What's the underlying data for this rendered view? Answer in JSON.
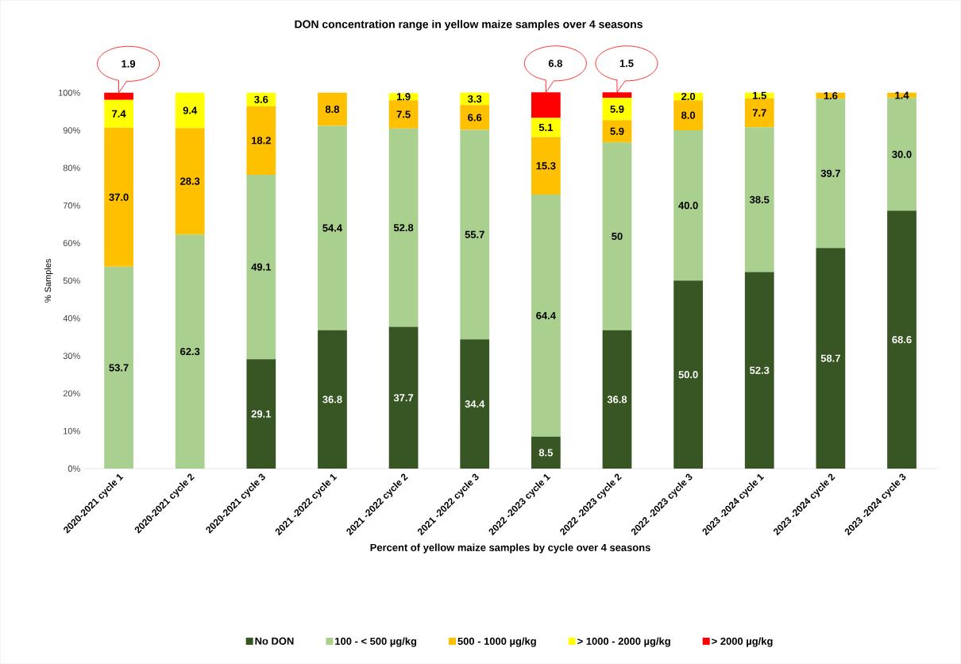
{
  "chart_data": {
    "type": "bar",
    "stacked": true,
    "title": "DON concentration range in yellow maize samples over 4 seasons",
    "xlabel": "Percent of yellow maize samples by cycle over 4 seasons",
    "ylabel": "% Samples",
    "categories": [
      "2020-2021 cycle 1",
      "2020-2021 cycle 2",
      "2020-2021 cycle 3",
      "2021 -2022 cycle 1",
      "2021 -2022 cycle 2",
      "2021 -2022 cycle 3",
      "2022 -2023 cycle 1",
      "2022 -2023 cycle 2",
      "2022 -2023 cycle 3",
      "2023 -2024 cycle 1",
      "2023 -2024 cycle 2",
      "2023 -2024 cycle 3"
    ],
    "series": [
      {
        "name": "No DON",
        "color": "#375623",
        "values": [
          0,
          0,
          29.1,
          36.8,
          37.7,
          34.4,
          8.5,
          36.8,
          50.0,
          52.3,
          58.7,
          68.6
        ],
        "value_labels": [
          null,
          null,
          "29.1",
          "36.8",
          "37.7",
          "34.4",
          "8.5",
          "36.8",
          "50.0",
          "52.3",
          "58.7",
          "68.6"
        ]
      },
      {
        "name": "100 - < 500 µg/kg",
        "color": "#a9d08e",
        "values": [
          53.7,
          62.3,
          49.1,
          54.4,
          52.8,
          55.7,
          64.4,
          50,
          40.0,
          38.5,
          39.7,
          30.0
        ],
        "value_labels": [
          "53.7",
          "62.3",
          "49.1",
          "54.4",
          "52.8",
          "55.7",
          "64.4",
          "50",
          "40.0",
          "38.5",
          "39.7",
          "30.0"
        ]
      },
      {
        "name": "500 - 1000 µg/kg",
        "color": "#ffc000",
        "values": [
          37.0,
          28.3,
          18.2,
          8.8,
          7.5,
          6.6,
          15.3,
          5.9,
          8.0,
          7.7,
          1.6,
          1.4
        ],
        "value_labels": [
          "37.0",
          "28.3",
          "18.2",
          "8.8",
          "7.5",
          "6.6",
          "15.3",
          "5.9",
          "8.0",
          "7.7",
          "1.6",
          "1.4"
        ]
      },
      {
        "name": "> 1000 - 2000 µg/kg",
        "color": "#ffff00",
        "values": [
          7.4,
          9.4,
          3.6,
          0,
          1.9,
          3.3,
          5.1,
          5.9,
          2.0,
          1.5,
          0,
          0
        ],
        "value_labels": [
          "7.4",
          "9.4",
          "3.6",
          null,
          "1.9",
          "3.3",
          "5.1",
          "5.9",
          "2.0",
          "1.5",
          null,
          null
        ]
      },
      {
        "name": "> 2000 µg/kg",
        "color": "#ff0000",
        "values": [
          1.9,
          0,
          0,
          0,
          0,
          0,
          6.8,
          1.5,
          0,
          0,
          0,
          0
        ],
        "value_labels": [
          "1.9",
          null,
          null,
          null,
          null,
          null,
          "6.8",
          "1.5",
          null,
          null,
          null,
          null
        ]
      }
    ],
    "ylim": [
      0,
      100
    ],
    "yticks": [
      {
        "value": 0,
        "label": "0%"
      },
      {
        "value": 10,
        "label": "10%"
      },
      {
        "value": 20,
        "label": "20%"
      },
      {
        "value": 30,
        "label": "30%"
      },
      {
        "value": 40,
        "label": "40%"
      },
      {
        "value": 50,
        "label": "50%"
      },
      {
        "value": 60,
        "label": "60%"
      },
      {
        "value": 70,
        "label": "70%"
      },
      {
        "value": 80,
        "label": "80%"
      },
      {
        "value": 90,
        "label": "90%"
      },
      {
        "value": 100,
        "label": "100%"
      }
    ],
    "legend": "bottom"
  }
}
